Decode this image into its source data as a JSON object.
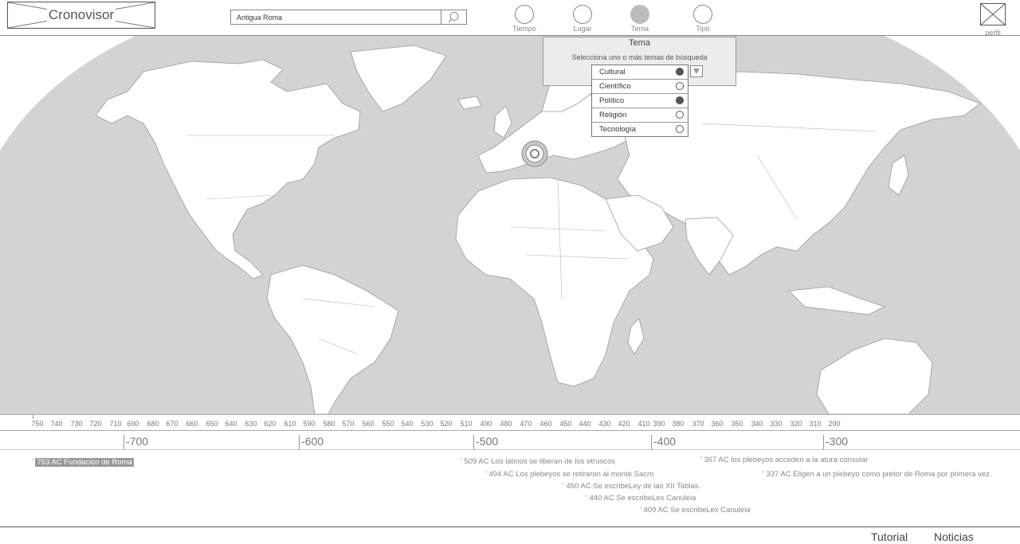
{
  "header": {
    "logo_text": "Cronovisor",
    "search": {
      "value": "Antigua Roma",
      "icon": "search-icon"
    },
    "filters": [
      {
        "label": "Tiempo",
        "active": false
      },
      {
        "label": "Lugar",
        "active": false
      },
      {
        "label": "Tema",
        "active": true
      },
      {
        "label": "Tipo",
        "active": false
      }
    ],
    "profile_label": "perfil"
  },
  "tema_popup": {
    "title": "Tema",
    "subtitle": "Selecciona uno o más temas de búsqueda",
    "options": [
      {
        "label": "Cultural",
        "checked": true
      },
      {
        "label": "Científico",
        "checked": false
      },
      {
        "label": "Político",
        "checked": true
      },
      {
        "label": "Religión",
        "checked": false
      },
      {
        "label": "Tecnología",
        "checked": false
      }
    ]
  },
  "timeline": {
    "year_ticks": [
      "750",
      "740",
      "730",
      "720",
      "710",
      "690",
      "680",
      "670",
      "660",
      "650",
      "640",
      "630",
      "620",
      "610",
      "590",
      "580",
      "570",
      "560",
      "550",
      "540",
      "530",
      "520",
      "510",
      "490",
      "480",
      "470",
      "460",
      "450",
      "440",
      "430",
      "420",
      "410",
      "390",
      "380",
      "370",
      "360",
      "350",
      "340",
      "330",
      "320",
      "310",
      "290"
    ],
    "centuries": [
      "-700",
      "-600",
      "-500",
      "-400",
      "-300"
    ],
    "events": [
      "753 AC Fundación de Roma",
      "509 AC Los latinos se liberan de los etruscos",
      "494 AC Los plebeyos se retiraron al monte Sacro",
      "450 AC Se escribeLey de las XII Tablas.",
      "440 AC Se escribeLex Canuleia",
      "409 AC Se escribeLex Canuleia",
      "367 AC los plebeyos acceden a la atura consular",
      "337 AC Eligen a un plebeyo como pretor de Roma por primera vez."
    ]
  },
  "footer": {
    "links": [
      "Tutorial",
      "Noticias"
    ]
  },
  "colors": {
    "ocean": "#d3d3d3",
    "land": "#ffffff",
    "border": "#a0a0a0",
    "marker": "#888888"
  }
}
